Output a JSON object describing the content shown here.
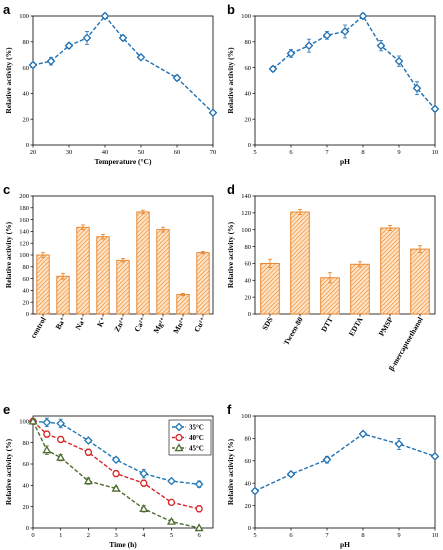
{
  "chart_data": [
    {
      "panel": "a",
      "type": "line",
      "xlabel": "Temperature (°C)",
      "ylabel": "Relative activity (%)",
      "xlim": [
        20,
        70
      ],
      "ylim": [
        0,
        100
      ],
      "xticks": [
        20,
        30,
        40,
        50,
        60,
        70
      ],
      "yticks": [
        0,
        20,
        40,
        60,
        80,
        100
      ],
      "x": [
        20,
        25,
        30,
        35,
        40,
        45,
        50,
        60,
        70
      ],
      "y": [
        62,
        65,
        77,
        83,
        100,
        83,
        68,
        52,
        25
      ],
      "err": [
        2,
        3,
        2,
        5,
        2,
        2,
        1,
        2,
        1
      ]
    },
    {
      "panel": "b",
      "type": "line",
      "xlabel": "pH",
      "ylabel": "Relative activity (%)",
      "xlim": [
        5,
        10
      ],
      "ylim": [
        0,
        100
      ],
      "xticks": [
        5,
        6,
        7,
        8,
        9,
        10
      ],
      "yticks": [
        0,
        20,
        40,
        60,
        80,
        100
      ],
      "x": [
        5.5,
        6,
        6.5,
        7,
        7.5,
        8,
        8.5,
        9,
        9.5,
        10
      ],
      "y": [
        59,
        71,
        77,
        85,
        88,
        100,
        77,
        65,
        44,
        28
      ],
      "err": [
        2,
        3,
        5,
        3,
        5,
        2,
        4,
        4,
        5,
        2
      ]
    },
    {
      "panel": "c",
      "type": "bar",
      "ylabel": "Relative activity (%)",
      "ylim": [
        0,
        200
      ],
      "yticks": [
        0,
        20,
        40,
        60,
        80,
        100,
        120,
        140,
        160,
        180,
        200
      ],
      "categories": [
        "control",
        "Ba⁺",
        "Na⁺",
        "K⁺",
        "Zn²⁺",
        "Ca²⁺",
        "Mg²⁺",
        "Mn²⁺",
        "Cu²⁺"
      ],
      "values": [
        100,
        64,
        147,
        131,
        91,
        173,
        143,
        33,
        104
      ],
      "err": [
        4,
        5,
        4,
        4,
        3,
        3,
        4,
        2,
        2
      ]
    },
    {
      "panel": "d",
      "type": "bar",
      "ylabel": "Relative activity (%)",
      "ylim": [
        0,
        140
      ],
      "yticks": [
        0,
        20,
        40,
        60,
        80,
        100,
        120,
        140
      ],
      "categories": [
        "SDS",
        "Tween-80",
        "DTT",
        "EDTA",
        "PMSP",
        "β-mercaptoethanol"
      ],
      "values": [
        60,
        121,
        43,
        59,
        102,
        77
      ],
      "err": [
        5,
        3,
        6,
        3,
        3,
        4
      ]
    },
    {
      "panel": "e",
      "type": "line",
      "xlabel": "Time (h)",
      "ylabel": "Relative activity (%)",
      "xlim": [
        0,
        6.5
      ],
      "ylim": [
        0,
        105
      ],
      "xticks": [
        0,
        1,
        2,
        3,
        4,
        5,
        6
      ],
      "yticks": [
        0,
        20,
        40,
        60,
        80,
        100
      ],
      "legend_position": "top-right",
      "series": [
        {
          "name": "35°C",
          "color": "#1f77b4",
          "marker": "diamond",
          "x": [
            0,
            0.5,
            1,
            2,
            3,
            4,
            5,
            6
          ],
          "y": [
            100,
            99,
            98,
            82,
            64,
            51,
            44,
            41
          ],
          "err": [
            2,
            4,
            4,
            2,
            2,
            4,
            2,
            3
          ]
        },
        {
          "name": "40°C",
          "color": "#d62728",
          "marker": "circle",
          "x": [
            0,
            0.5,
            1,
            2,
            3,
            4,
            5,
            6
          ],
          "y": [
            100,
            88,
            83,
            71,
            51,
            42,
            24,
            18
          ],
          "err": [
            2,
            3,
            3,
            3,
            3,
            3,
            2,
            3
          ]
        },
        {
          "name": "45°C",
          "color": "#4d6b2e",
          "marker": "triangle",
          "x": [
            0,
            0.5,
            1,
            2,
            3,
            4,
            5,
            6
          ],
          "y": [
            100,
            73,
            66,
            44,
            37,
            18,
            6,
            0
          ],
          "err": [
            2,
            4,
            3,
            3,
            2,
            3,
            2,
            1
          ]
        }
      ]
    },
    {
      "panel": "f",
      "type": "line",
      "xlabel": "pH",
      "ylabel": "Relative activity (%)",
      "xlim": [
        5,
        10
      ],
      "ylim": [
        0,
        100
      ],
      "xticks": [
        5,
        6,
        7,
        8,
        9,
        10
      ],
      "yticks": [
        0,
        20,
        40,
        60,
        80,
        100
      ],
      "x": [
        5,
        6,
        7,
        8,
        9,
        10
      ],
      "y": [
        33,
        48,
        61,
        84,
        75,
        64
      ],
      "err": [
        2,
        2,
        3,
        2,
        5,
        2
      ]
    }
  ],
  "colors": {
    "line_blue": "#1f6fb4",
    "bar_orange": "#f4a460",
    "bar_stroke": "#e67e22"
  }
}
